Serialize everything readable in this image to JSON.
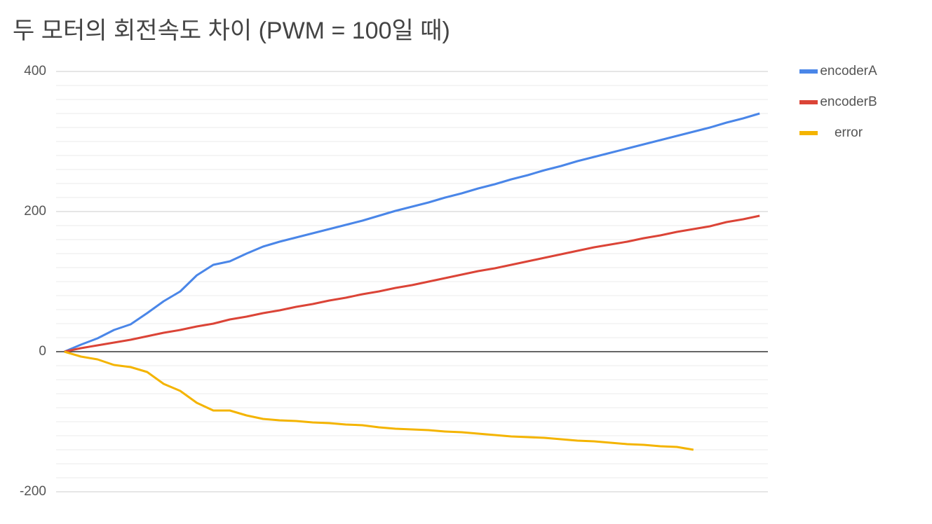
{
  "chart_data": {
    "type": "line",
    "title": "두 모터의 회전속도 차이 (PWM = 100일 때)",
    "categories": [
      null,
      null,
      null,
      null,
      null,
      null,
      null,
      null,
      null,
      null,
      null,
      null,
      null,
      null,
      null,
      null,
      null,
      null,
      null,
      null,
      null,
      null,
      null,
      null,
      null,
      null,
      null,
      null,
      null,
      null,
      null,
      null,
      null,
      null,
      null,
      null,
      null,
      null,
      null,
      null,
      null,
      null,
      null
    ],
    "series": [
      {
        "name": "encoderA",
        "color": "#4a86e8",
        "values": [
          0,
          10,
          19,
          31,
          39,
          55,
          72,
          86,
          109,
          124,
          129,
          140,
          150,
          157,
          163,
          169,
          175,
          181,
          187,
          194,
          201,
          207,
          213,
          220,
          226,
          233,
          239,
          246,
          252,
          259,
          265,
          272,
          278,
          284,
          290,
          296,
          302,
          308,
          314,
          320,
          327,
          333,
          340
        ]
      },
      {
        "name": "encoderB",
        "color": "#db4437",
        "values": [
          0,
          5,
          9,
          13,
          17,
          22,
          27,
          31,
          36,
          40,
          46,
          50,
          55,
          59,
          64,
          68,
          73,
          77,
          82,
          86,
          91,
          95,
          100,
          105,
          110,
          115,
          119,
          124,
          129,
          134,
          139,
          144,
          149,
          153,
          157,
          162,
          166,
          171,
          175,
          179,
          185,
          189,
          194
        ]
      },
      {
        "name": "error",
        "color": "#f4b400",
        "values": [
          0,
          -7,
          -11,
          -19,
          -22,
          -29,
          -46,
          -56,
          -73,
          -84,
          -84,
          -91,
          -96,
          -98,
          -99,
          -101,
          -102,
          -104,
          -105,
          -108,
          -110,
          -111,
          -112,
          -114,
          -115,
          -117,
          -119,
          -121,
          -122,
          -123,
          -125,
          -127,
          -128,
          -130,
          -132,
          -133,
          -135,
          -136,
          -140,
          null,
          null,
          null,
          null
        ]
      }
    ],
    "ylim": [
      -200,
      400
    ],
    "yticks": [
      -200,
      0,
      200,
      400
    ],
    "grid": true,
    "minor_grid_count": 9,
    "legend": "right"
  }
}
